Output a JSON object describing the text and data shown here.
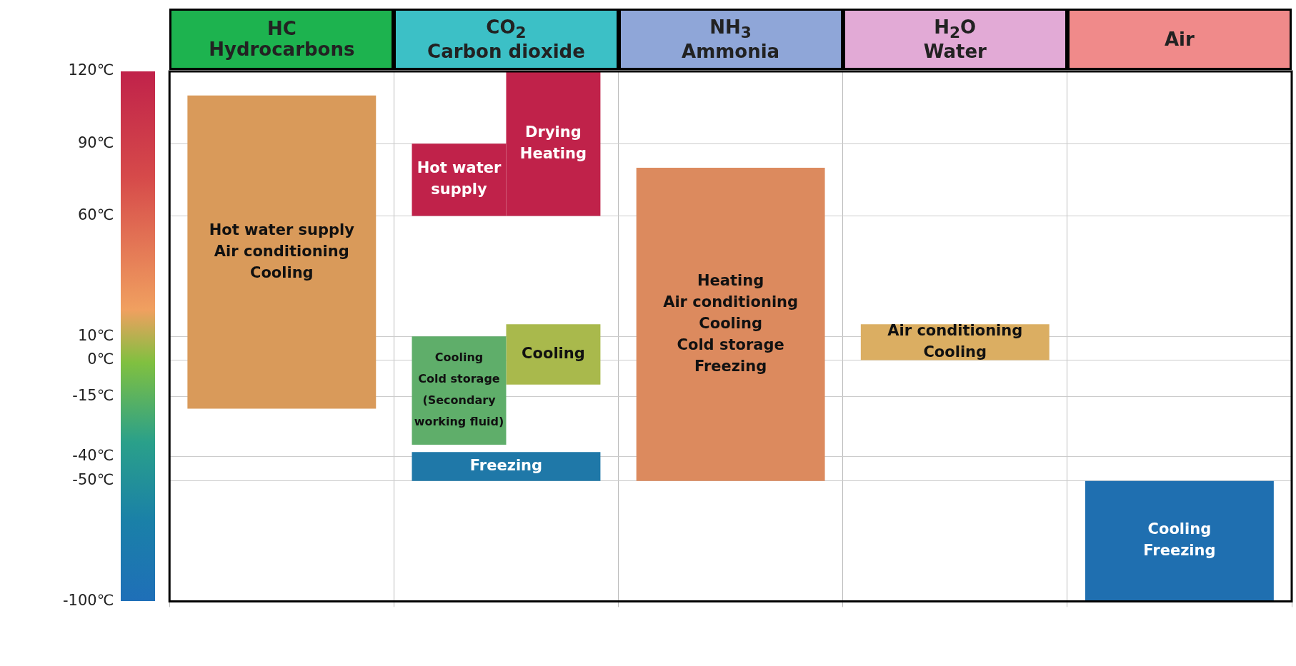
{
  "chart_data": {
    "type": "bar",
    "categories": [
      "HC\nHydrocarbons",
      "CO$_{2}$\nCarbon dioxide",
      "NH$_{3}$\nAmmonia",
      "H$_{2}$O\nWater",
      "Air"
    ],
    "series": [
      {
        "values": [
          130,
          30,
          130,
          15,
          50
        ],
        "base": [
          -20,
          60,
          -50,
          0,
          -100
        ],
        "colors": [
          "#d99a5a",
          "#c0224a",
          "#dc8a5e",
          "#dbae62",
          "#1f6fb0"
        ],
        "value_labels": [
          "Hot water supply\nAir conditioning\nCooling",
          "Hot water\nsupply",
          "Heating\nAir conditioning\nCooling\nCold storage\nFreezing",
          "Air conditioning\nCooling",
          "Cooling\nFreezing"
        ]
      },
      {
        "values": [
          null,
          60,
          null,
          null,
          null
        ],
        "base": [
          null,
          60,
          null,
          null,
          null
        ],
        "colors": [
          null,
          "#c0224a",
          null,
          null,
          null
        ],
        "value_labels": [
          null,
          "Drying\nHeating",
          null,
          null,
          null
        ]
      },
      {
        "values": [
          null,
          45,
          null,
          null,
          null
        ],
        "base": [
          null,
          -35,
          null,
          null,
          null
        ],
        "colors": [
          null,
          "#5fae6a",
          null,
          null,
          null
        ],
        "value_labels": [
          null,
          "Cooling\nCold storage\n(Secondary\nworking fluid)",
          null,
          null,
          null
        ]
      },
      {
        "values": [
          null,
          25,
          null,
          null,
          null
        ],
        "base": [
          null,
          -10,
          null,
          null,
          null
        ],
        "colors": [
          null,
          "#a9b94c",
          null,
          null,
          null
        ],
        "value_labels": [
          null,
          "Cooling",
          null,
          null,
          null
        ]
      },
      {
        "values": [
          null,
          12,
          null,
          null,
          null
        ],
        "base": [
          null,
          -50,
          null,
          null,
          null
        ],
        "colors": [
          null,
          "#1f78a8",
          null,
          null,
          null
        ],
        "value_labels": [
          null,
          "Freezing",
          null,
          null,
          null
        ]
      }
    ],
    "ylim": [
      -100,
      120
    ],
    "yticks": [
      {
        "value": 120,
        "label": "120℃"
      },
      {
        "value": 90,
        "label": "90℃"
      },
      {
        "value": 60,
        "label": "60℃"
      },
      {
        "value": 10,
        "label": "10℃"
      },
      {
        "value": 0,
        "label": "0℃"
      },
      {
        "value": -15,
        "label": "-15℃"
      },
      {
        "value": -40,
        "label": "-40℃"
      },
      {
        "value": -50,
        "label": "-50℃"
      },
      {
        "value": -100,
        "label": "-100℃"
      }
    ],
    "grid": true,
    "legend": false
  }
}
